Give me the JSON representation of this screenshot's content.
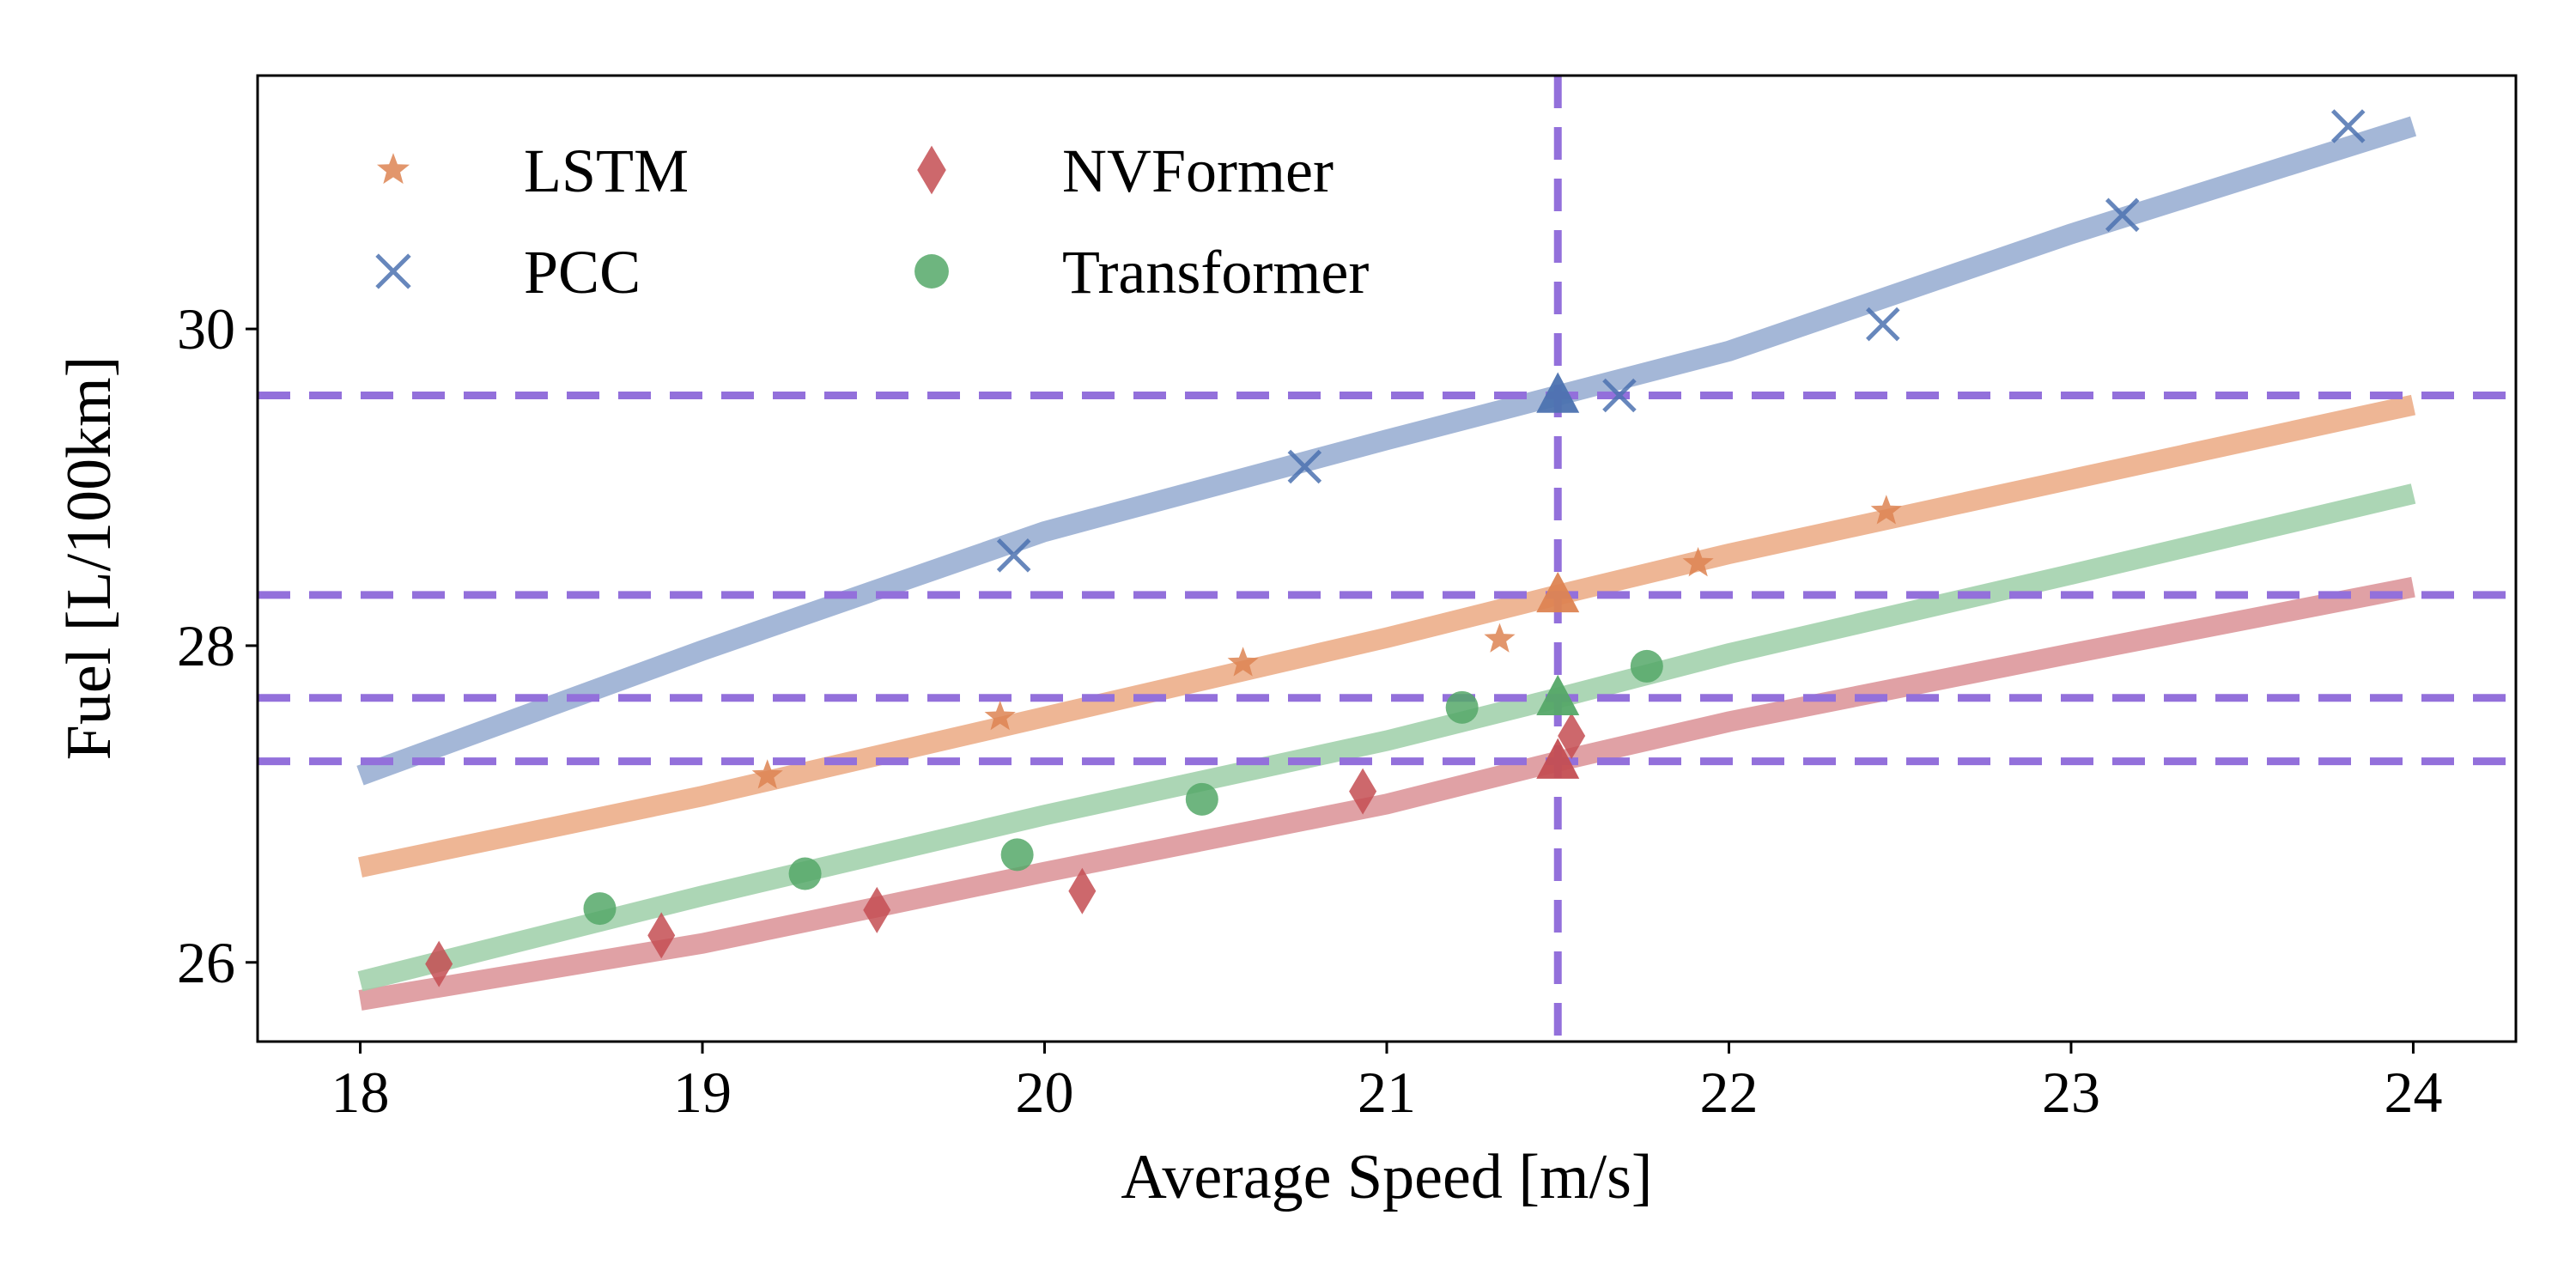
{
  "chart_data": {
    "type": "scatter",
    "xlabel": "Average Speed [m/s]",
    "ylabel": "Fuel [L/100km]",
    "xlim": [
      17.7,
      24.3
    ],
    "ylim": [
      25.5,
      31.6
    ],
    "xticks": [
      "18",
      "19",
      "20",
      "21",
      "22",
      "23",
      "24"
    ],
    "yticks": [
      "26",
      "28",
      "30"
    ],
    "grid": false,
    "legend_position": "top-left",
    "series": [
      {
        "name": "LSTM",
        "marker": "star",
        "color": "#DD8452",
        "fit_color": "#EBA983",
        "points": [
          [
            19.19,
            27.18
          ],
          [
            19.87,
            27.55
          ],
          [
            20.58,
            27.89
          ],
          [
            21.33,
            28.04
          ],
          [
            21.91,
            28.52
          ],
          [
            22.46,
            28.85
          ]
        ],
        "fit": [
          [
            18.0,
            26.6
          ],
          [
            19.0,
            27.05
          ],
          [
            20.0,
            27.55
          ],
          [
            21.0,
            28.05
          ],
          [
            21.5,
            28.32
          ],
          [
            22.0,
            28.58
          ],
          [
            23.0,
            29.05
          ],
          [
            24.0,
            29.52
          ]
        ]
      },
      {
        "name": "PCC",
        "marker": "x",
        "color": "#4C72B0",
        "fit_color": "#94AAD0",
        "points": [
          [
            19.91,
            28.57
          ],
          [
            20.76,
            29.13
          ],
          [
            21.68,
            29.58
          ],
          [
            22.45,
            30.03
          ],
          [
            23.15,
            30.72
          ],
          [
            23.81,
            31.28
          ]
        ],
        "fit": [
          [
            18.0,
            27.18
          ],
          [
            19.0,
            27.97
          ],
          [
            20.0,
            28.72
          ],
          [
            21.0,
            29.3
          ],
          [
            21.5,
            29.58
          ],
          [
            22.0,
            29.86
          ],
          [
            23.0,
            30.6
          ],
          [
            24.0,
            31.28
          ]
        ]
      },
      {
        "name": "NVFormer",
        "marker": "diamond",
        "color": "#C44E52",
        "fit_color": "#DB9195",
        "points": [
          [
            18.23,
            25.99
          ],
          [
            18.88,
            26.17
          ],
          [
            19.51,
            26.33
          ],
          [
            20.11,
            26.45
          ],
          [
            20.93,
            27.08
          ],
          [
            21.54,
            27.43
          ]
        ],
        "fit": [
          [
            18.0,
            25.76
          ],
          [
            19.0,
            26.12
          ],
          [
            20.0,
            26.57
          ],
          [
            21.0,
            27.0
          ],
          [
            21.5,
            27.27
          ],
          [
            22.0,
            27.52
          ],
          [
            23.0,
            27.95
          ],
          [
            24.0,
            28.37
          ]
        ]
      },
      {
        "name": "Transformer",
        "marker": "circle",
        "color": "#55A868",
        "fit_color": "#9ECFA8",
        "points": [
          [
            18.7,
            26.34
          ],
          [
            19.3,
            26.56
          ],
          [
            19.92,
            26.68
          ],
          [
            20.46,
            27.03
          ],
          [
            21.22,
            27.61
          ],
          [
            21.76,
            27.87
          ]
        ],
        "fit": [
          [
            18.0,
            25.88
          ],
          [
            19.0,
            26.42
          ],
          [
            20.0,
            26.93
          ],
          [
            21.0,
            27.4
          ],
          [
            21.5,
            27.67
          ],
          [
            22.0,
            27.95
          ],
          [
            23.0,
            28.45
          ],
          [
            24.0,
            28.96
          ]
        ]
      }
    ],
    "reference_lines": {
      "color": "#9370DB",
      "vertical_x": 21.5,
      "horizontal_y": [
        29.58,
        28.32,
        27.67,
        27.27
      ]
    },
    "highlight_points": [
      {
        "series": "PCC",
        "x": 21.5,
        "y": 29.58,
        "marker": "triangle"
      },
      {
        "series": "LSTM",
        "x": 21.5,
        "y": 28.32,
        "marker": "triangle"
      },
      {
        "series": "Transformer",
        "x": 21.5,
        "y": 27.67,
        "marker": "triangle"
      },
      {
        "series": "NVFormer",
        "x": 21.5,
        "y": 27.27,
        "marker": "triangle"
      }
    ]
  }
}
